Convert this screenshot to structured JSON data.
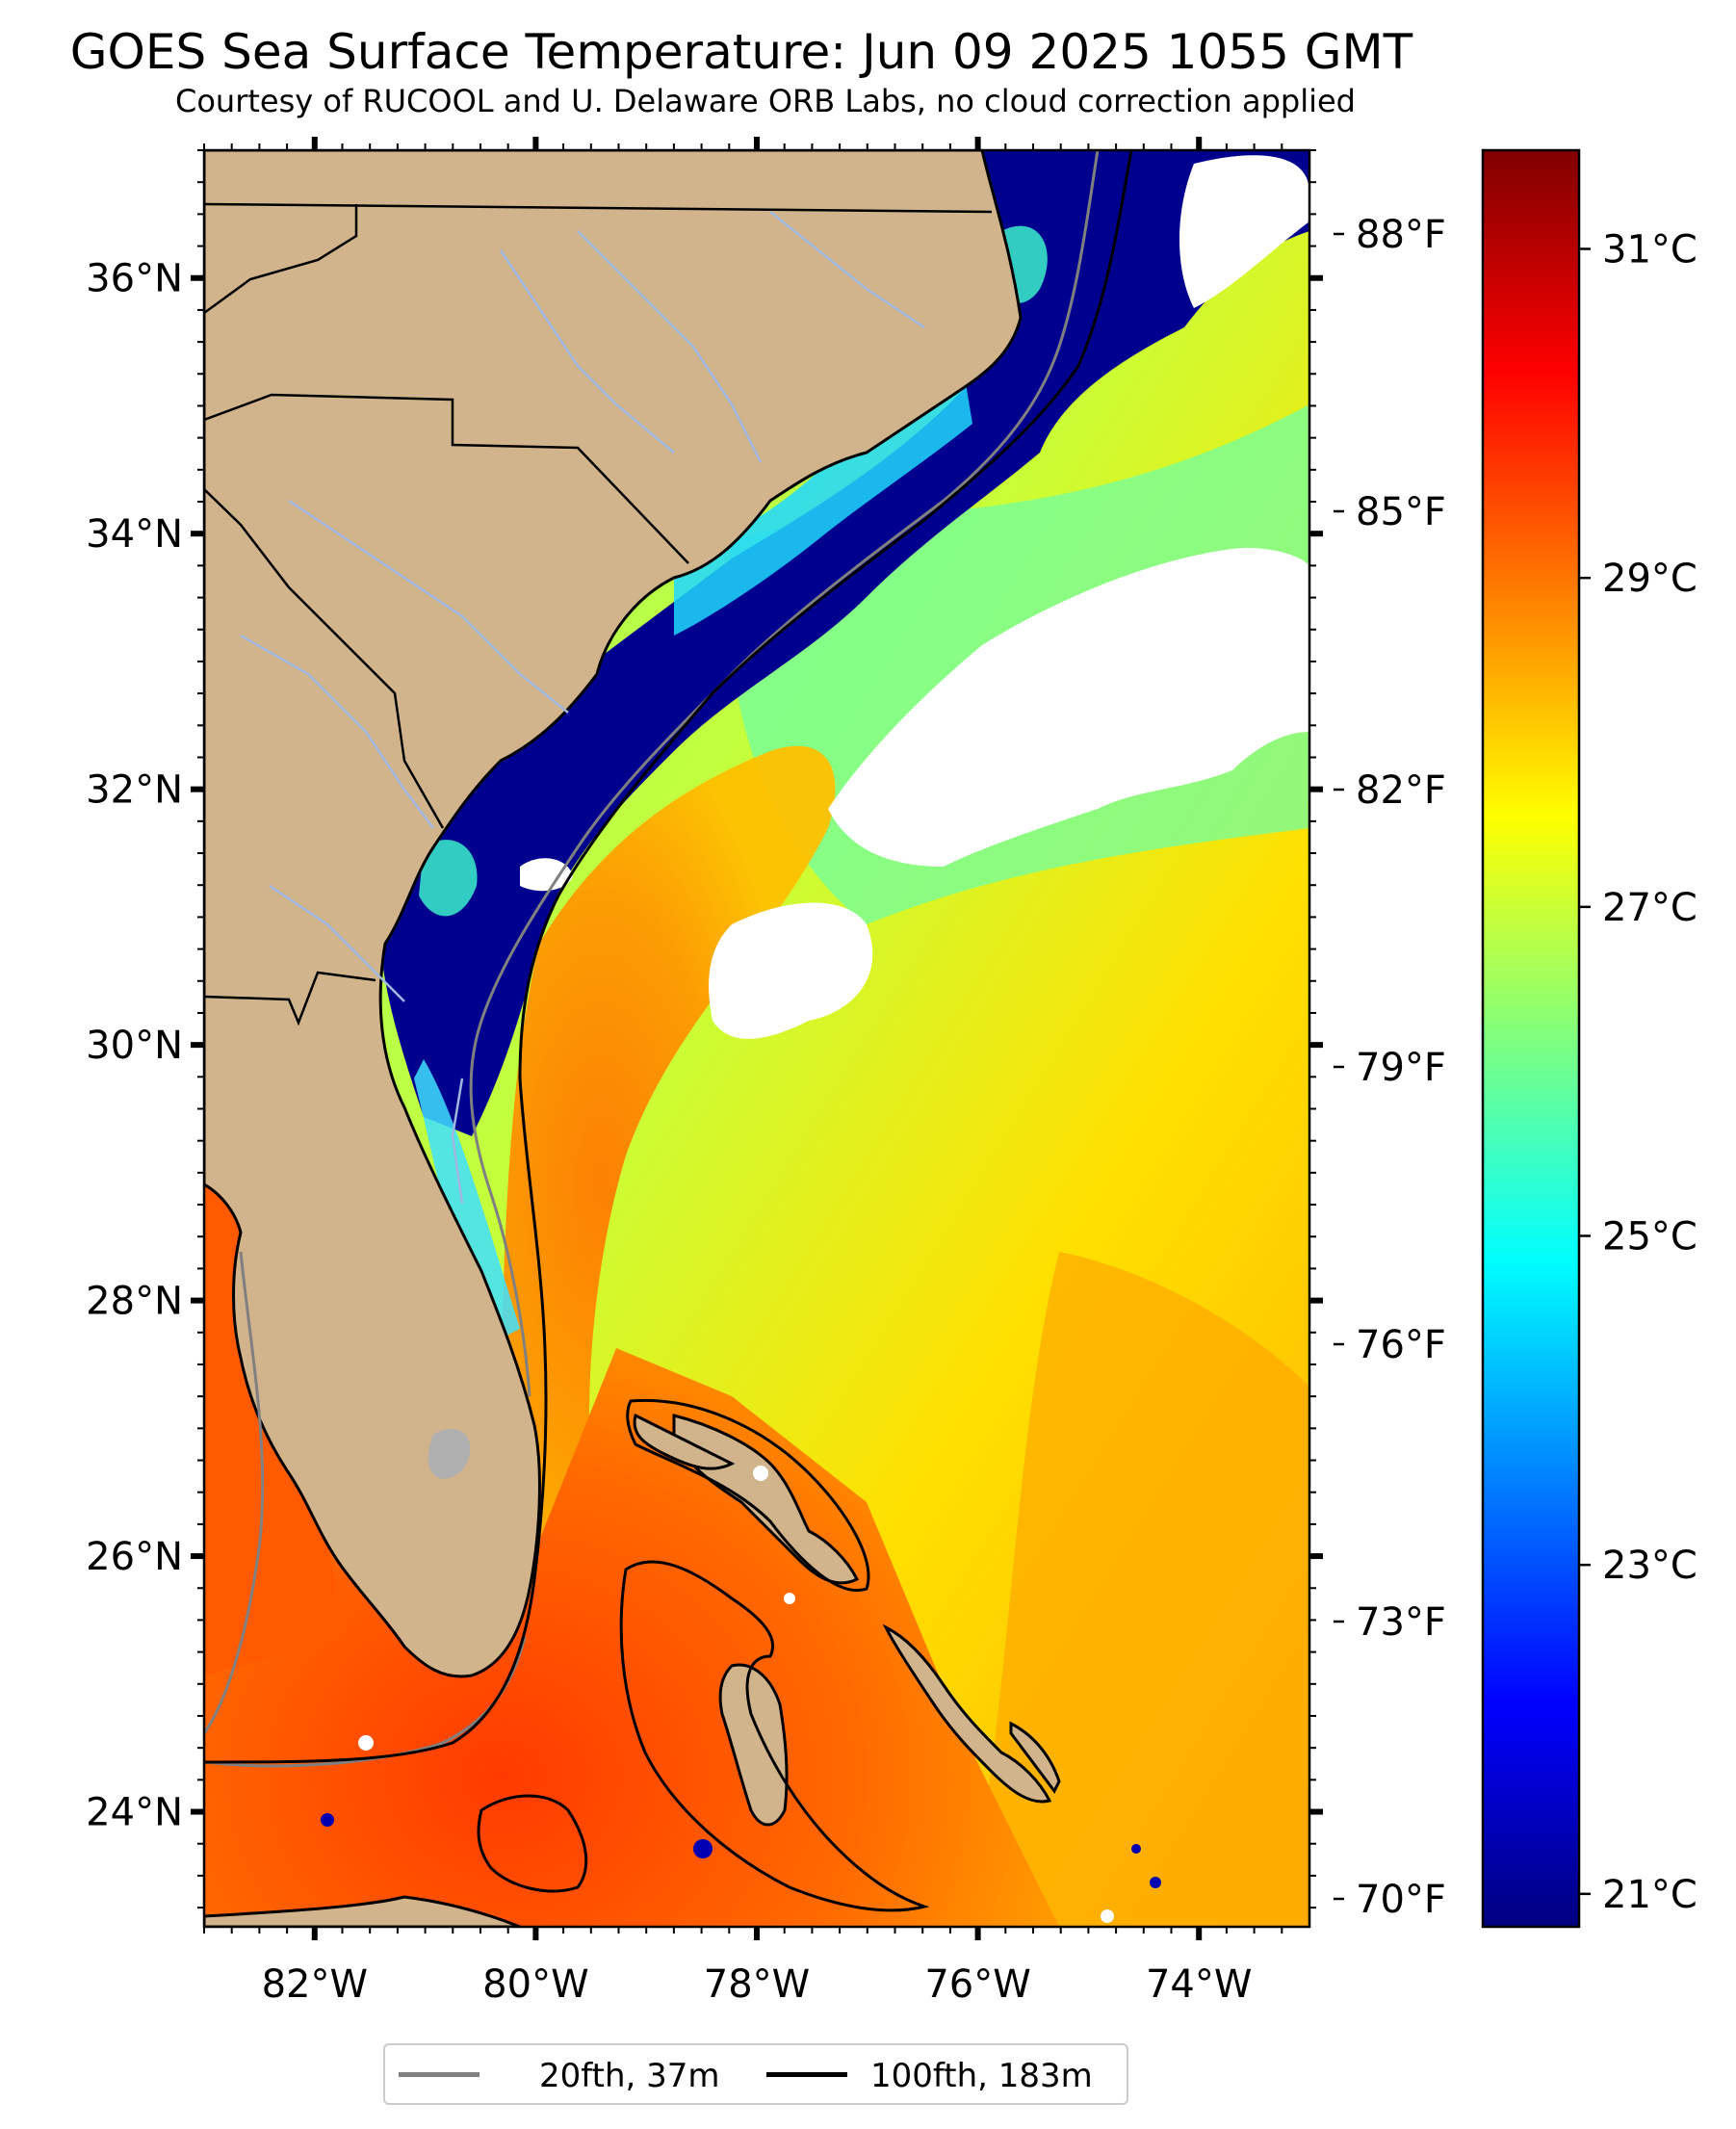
{
  "title": "GOES Sea Surface Temperature: Jun 09 2025 1055 GMT",
  "subtitle": "Courtesy of RUCOOL and U. Delaware ORB Labs, no cloud correction applied",
  "map": {
    "lon_range": [
      -83.0,
      -73.0
    ],
    "lat_range": [
      23.1,
      37.0
    ],
    "lon_ticks": [
      "82°W",
      "80°W",
      "78°W",
      "76°W",
      "74°W"
    ],
    "lat_ticks": [
      "36°N",
      "34°N",
      "32°N",
      "30°N",
      "28°N",
      "26°N",
      "24°N"
    ],
    "fahrenheit_ticks": [
      "88°F",
      "85°F",
      "82°F",
      "79°F",
      "76°F",
      "73°F",
      "70°F"
    ],
    "colors": {
      "land": "#d2b48c",
      "cloud": "#ffffff",
      "isobath_20": "#808080",
      "isobath_100": "#000000",
      "border": "#000000",
      "river": "#a0b8e0",
      "lake": "#b0b0b0"
    }
  },
  "colorbar": {
    "ticks": [
      "31°C",
      "29°C",
      "27°C",
      "25°C",
      "23°C",
      "21°C"
    ],
    "range_c": [
      20.8,
      31.6
    ],
    "colormap": "jet",
    "colormap_stops": [
      "#00007f",
      "#0000ff",
      "#007fff",
      "#00ffff",
      "#7fff7f",
      "#ffff00",
      "#ff7f00",
      "#ff0000",
      "#7f0000"
    ]
  },
  "legend": {
    "items": [
      {
        "label": "20fth, 37m",
        "color": "#808080"
      },
      {
        "label": "100fth, 183m",
        "color": "#000000"
      }
    ]
  }
}
